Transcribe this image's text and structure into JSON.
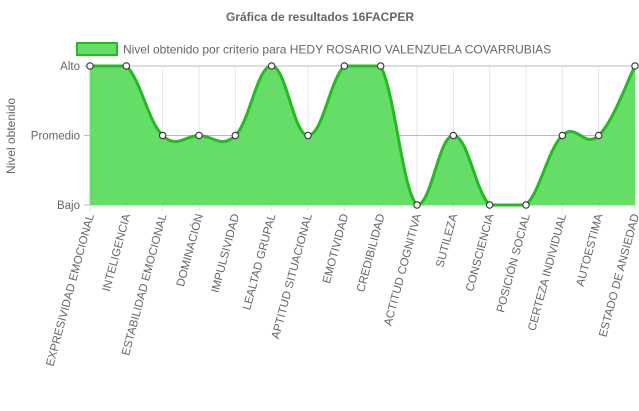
{
  "chart_data": {
    "type": "area",
    "title": "Gráfica de resultados 16FACPER",
    "ylabel": "Nivel obtenido",
    "xlabel": "",
    "y_levels": [
      "Bajo",
      "Promedio",
      "Alto"
    ],
    "ylim": [
      0,
      2
    ],
    "categories": [
      "EXPRESIVIDAD EMOCIONAL",
      "INTELIGENCIA",
      "ESTABILIDAD EMOCIONAL",
      "DOMINACIÓN",
      "IMPULSIVIDAD",
      "LEALTAD GRUPAL",
      "APTITUD SITUACIONAL",
      "EMOTIVIDAD",
      "CREDIBILIDAD",
      "ACTITUD COGNITIVA",
      "SUTILEZA",
      "CONSCIENCIA",
      "POSICIÓN SOCIAL",
      "CERTEZA INDIVIDUAL",
      "AUTOESTIMA",
      "ESTADO DE ANSIEDAD"
    ],
    "series": [
      {
        "name": "Nivel obtenido por criterio para HEDY ROSARIO VALENZUELA COVARRUBIAS",
        "values": [
          2,
          2,
          1,
          1,
          1,
          2,
          1,
          2,
          2,
          0,
          1,
          0,
          0,
          1,
          1,
          2
        ],
        "fill_color": "#66dd66",
        "line_color": "#22bb22"
      }
    ],
    "grid": true,
    "legend_position": "top"
  }
}
